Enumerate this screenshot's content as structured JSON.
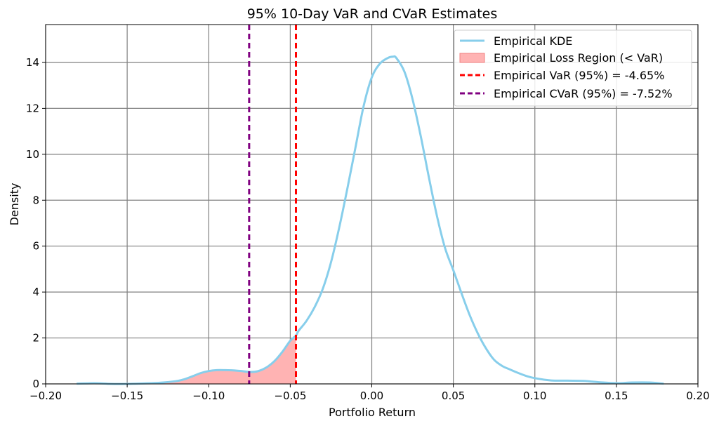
{
  "chart_data": {
    "type": "line",
    "title": "95% 10-Day VaR and CVaR Estimates",
    "xlabel": "Portfolio Return",
    "ylabel": "Density",
    "xlim": [
      -0.2,
      0.2
    ],
    "ylim": [
      0,
      15.65
    ],
    "xticks": [
      -0.2,
      -0.15,
      -0.1,
      -0.05,
      0.0,
      0.05,
      0.1,
      0.15,
      0.2
    ],
    "xtick_labels": [
      "−0.20",
      "−0.15",
      "−0.10",
      "−0.05",
      "0.00",
      "0.05",
      "0.10",
      "0.15",
      "0.20"
    ],
    "yticks": [
      0,
      2,
      4,
      6,
      8,
      10,
      12,
      14
    ],
    "ytick_labels": [
      "0",
      "2",
      "4",
      "6",
      "8",
      "10",
      "12",
      "14"
    ],
    "grid": true,
    "legend_position": "top-right",
    "series": [
      {
        "name": "Empirical KDE",
        "color": "#87ceeb",
        "x": [
          -0.181,
          -0.17,
          -0.16,
          -0.15,
          -0.14,
          -0.13,
          -0.12,
          -0.115,
          -0.11,
          -0.105,
          -0.1,
          -0.095,
          -0.09,
          -0.085,
          -0.08,
          -0.075,
          -0.07,
          -0.065,
          -0.06,
          -0.055,
          -0.05,
          -0.0465,
          -0.045,
          -0.04,
          -0.035,
          -0.03,
          -0.025,
          -0.02,
          -0.015,
          -0.01,
          -0.005,
          0.0,
          0.005,
          0.01,
          0.013,
          0.015,
          0.02,
          0.025,
          0.03,
          0.035,
          0.04,
          0.045,
          0.05,
          0.055,
          0.06,
          0.065,
          0.07,
          0.075,
          0.08,
          0.085,
          0.09,
          0.095,
          0.1,
          0.11,
          0.12,
          0.13,
          0.14,
          0.15,
          0.16,
          0.17,
          0.179
        ],
        "y": [
          0.01,
          0.03,
          0.0,
          0.0,
          0.02,
          0.05,
          0.12,
          0.2,
          0.33,
          0.47,
          0.56,
          0.6,
          0.6,
          0.59,
          0.56,
          0.52,
          0.55,
          0.7,
          0.97,
          1.38,
          1.88,
          2.1,
          2.3,
          2.75,
          3.35,
          4.15,
          5.3,
          6.8,
          8.5,
          10.3,
          12.1,
          13.35,
          13.95,
          14.2,
          14.25,
          14.2,
          13.6,
          12.4,
          10.8,
          9.0,
          7.3,
          5.9,
          4.95,
          3.95,
          3.0,
          2.2,
          1.55,
          1.05,
          0.78,
          0.62,
          0.47,
          0.34,
          0.25,
          0.15,
          0.14,
          0.13,
          0.07,
          0.03,
          0.06,
          0.06,
          0.01
        ]
      },
      {
        "name": "Empirical Loss Region (< VaR)",
        "color": "#ffb3b3",
        "kind": "area_under_kde_below_var"
      },
      {
        "name": "Empirical VaR (95%) = -4.65%",
        "color": "#ff0000",
        "kind": "vline",
        "x": -0.0465
      },
      {
        "name": "Empirical CVaR (95%) = -7.52%",
        "color": "#800080",
        "kind": "vline",
        "x": -0.0752
      }
    ]
  }
}
